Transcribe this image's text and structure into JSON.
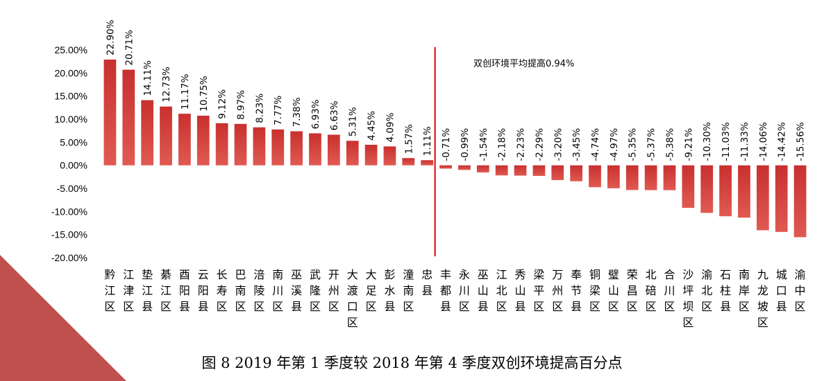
{
  "chart_data": {
    "type": "bar",
    "categories": [
      "黔江区",
      "江津区",
      "垫江县",
      "綦江区",
      "酉阳县",
      "云阳县",
      "长寿区",
      "巴南区",
      "涪陵区",
      "南川区",
      "巫溪县",
      "武隆区",
      "开州区",
      "大渡口区",
      "大足区",
      "彭水县",
      "潼南区",
      "忠县",
      "丰都县",
      "永川区",
      "巫山县",
      "江北区",
      "秀山县",
      "梁平区",
      "万州区",
      "奉节县",
      "铜梁区",
      "璧山区",
      "荣昌区",
      "北碚区",
      "合川区",
      "沙坪坝区",
      "渝北区",
      "石柱县",
      "南岸区",
      "九龙坡区",
      "城口县",
      "渝中区"
    ],
    "values": [
      22.9,
      20.71,
      14.11,
      12.73,
      11.17,
      10.75,
      9.12,
      8.97,
      8.23,
      7.77,
      7.38,
      6.93,
      6.63,
      5.31,
      4.45,
      4.09,
      1.57,
      1.11,
      -0.71,
      -0.99,
      -1.54,
      -2.18,
      -2.23,
      -2.29,
      -3.2,
      -3.45,
      -4.74,
      -4.97,
      -5.35,
      -5.37,
      -5.38,
      -9.21,
      -10.3,
      -11.03,
      -11.33,
      -14.06,
      -14.42,
      -15.56
    ],
    "data_labels": [
      "22.90%",
      "20.71%",
      "14.11%",
      "12.73%",
      "11.17%",
      "10.75%",
      "9.12%",
      "8.97%",
      "8.23%",
      "7.77%",
      "7.38%",
      "6.93%",
      "6.63%",
      "5.31%",
      "4.45%",
      "4.09%",
      "1.57%",
      "1.11%",
      "-0.71%",
      "-0.99%",
      "-1.54%",
      "-2.18%",
      "-2.23%",
      "-2.29%",
      "-3.20%",
      "-3.45%",
      "-4.74%",
      "-4.97%",
      "-5.35%",
      "-5.37%",
      "-5.38%",
      "-9.21%",
      "-10.30%",
      "-11.03%",
      "-11.33%",
      "-14.06%",
      "-14.42%",
      "-15.56%"
    ],
    "ylim": [
      -20,
      25
    ],
    "yticks": [
      25,
      20,
      15,
      10,
      5,
      0,
      -5,
      -10,
      -15,
      -20
    ],
    "ytick_labels": [
      "25.00%",
      "20.00%",
      "15.00%",
      "10.00%",
      "5.00%",
      "0.00%",
      "-5.00%",
      "-10.00%",
      "-15.00%",
      "-20.00%"
    ],
    "annotation": "双创环境平均提高0.94%",
    "caption": "图 8 2019 年第 1 季度较 2018 年第 4 季度双创环境提高百分点",
    "grid": false,
    "legend": "none",
    "colors": {
      "bar": "#c8302e",
      "bar_light": "#e05a52",
      "divider": "#e00000",
      "corner": "#c0504d"
    }
  }
}
